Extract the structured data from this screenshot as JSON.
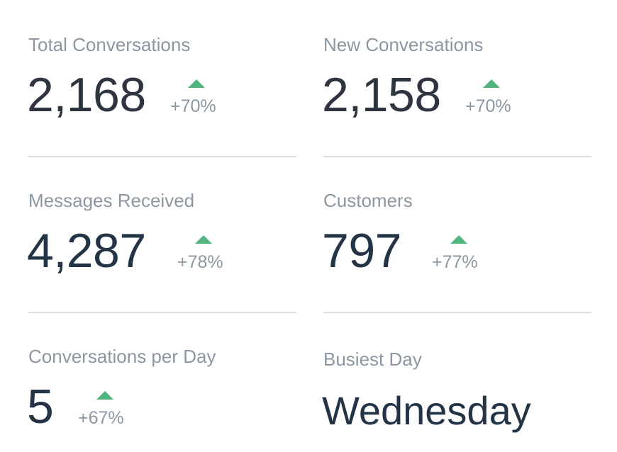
{
  "colors": {
    "label": "#8c97a3",
    "value": "#2f3540",
    "value_dark": "#243447",
    "up_arrow": "#50b47f",
    "divider": "#d9dee3"
  },
  "stats": [
    {
      "label": "Total Conversations",
      "value": "2,168",
      "change": "+70%",
      "trend_icon": "triangle-up-icon"
    },
    {
      "label": "New Conversations",
      "value": "2,158",
      "change": "+70%",
      "trend_icon": "triangle-up-icon"
    },
    {
      "label": "Messages Received",
      "value": "4,287",
      "change": "+78%",
      "trend_icon": "triangle-up-icon"
    },
    {
      "label": "Customers",
      "value": "797",
      "change": "+77%",
      "trend_icon": "triangle-up-icon"
    },
    {
      "label": "Conversations per Day",
      "value": "5",
      "change": "+67%",
      "trend_icon": "triangle-up-icon"
    },
    {
      "label": "Busiest Day",
      "value": "Wednesday"
    }
  ]
}
